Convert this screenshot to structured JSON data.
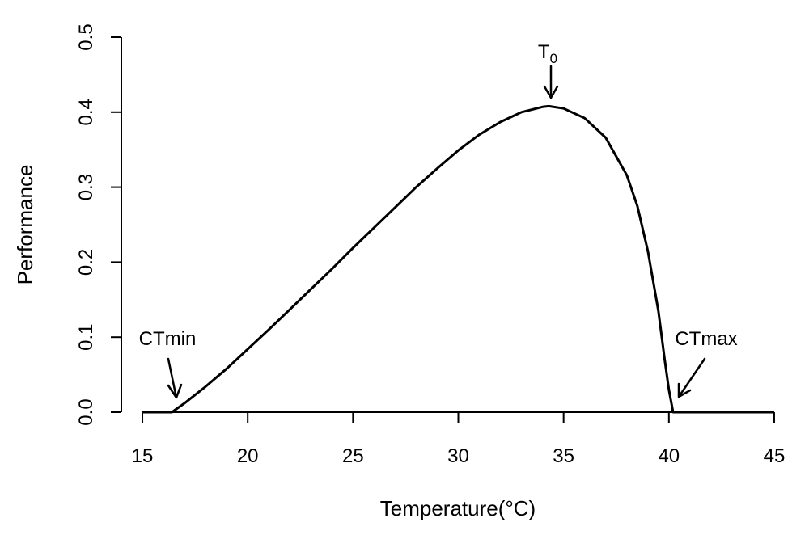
{
  "chart_data": {
    "type": "line",
    "title": "",
    "xlabel": "Temperature(°C)",
    "ylabel": "Performance",
    "xlim": [
      14,
      46
    ],
    "ylim": [
      0,
      0.5
    ],
    "x_ticks": [
      15,
      20,
      25,
      30,
      35,
      40,
      45
    ],
    "y_ticks": [
      0.0,
      0.1,
      0.2,
      0.3,
      0.4,
      0.5
    ],
    "x_tick_labels": [
      "15",
      "20",
      "25",
      "30",
      "35",
      "40",
      "45"
    ],
    "y_tick_labels": [
      "0.0",
      "0.1",
      "0.2",
      "0.3",
      "0.4",
      "0.5"
    ],
    "grid": false,
    "series": [
      {
        "color": "#000000",
        "x": [
          15,
          16.4,
          17,
          18,
          19,
          20,
          21,
          22,
          23,
          24,
          25,
          26,
          27,
          28,
          29,
          30,
          31,
          32,
          33,
          34,
          34.3,
          35,
          36,
          37,
          38,
          38.5,
          39,
          39.5,
          39.8,
          40.0,
          40.2,
          41,
          42,
          43,
          44,
          45
        ],
        "y": [
          0,
          0,
          0.012,
          0.034,
          0.058,
          0.084,
          0.11,
          0.137,
          0.164,
          0.191,
          0.219,
          0.246,
          0.273,
          0.3,
          0.325,
          0.349,
          0.37,
          0.387,
          0.4,
          0.407,
          0.408,
          0.405,
          0.392,
          0.366,
          0.316,
          0.275,
          0.215,
          0.135,
          0.07,
          0.03,
          0,
          0,
          0,
          0,
          0,
          0
        ]
      }
    ],
    "annotations": [
      {
        "label": "CTmin",
        "x": 16.4,
        "y": 0
      },
      {
        "label": "T",
        "subscript": "0",
        "x": 34.3,
        "y": 0.408
      },
      {
        "label": "CTmax",
        "x": 40.2,
        "y": 0
      }
    ]
  }
}
